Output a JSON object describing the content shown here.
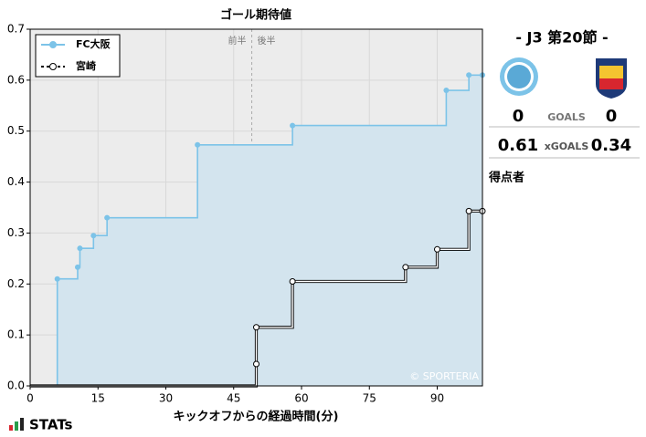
{
  "chart_data": {
    "type": "step",
    "title": "ゴール期待値",
    "x_label": "キックオフからの経過時間(分)",
    "xlim": [
      0,
      100
    ],
    "ylim": [
      0,
      0.7
    ],
    "xticks": [
      0,
      15,
      30,
      45,
      60,
      75,
      90
    ],
    "yticks": [
      {
        "value": 0,
        "label": "0.0"
      },
      0.1,
      0.2,
      0.3,
      0.4,
      0.5,
      0.6,
      0.7
    ],
    "grid": true,
    "legend": "upper left",
    "half_time": 49,
    "half_labels": [
      "前半",
      "後半"
    ],
    "watermark": "© SPORTERIA",
    "series": [
      {
        "name": "FC大阪",
        "color": "#7cc3e8",
        "x": [
          0,
          6,
          10.5,
          11,
          14,
          17,
          37,
          58,
          92,
          97,
          100
        ],
        "values": [
          0,
          0.21,
          0.233,
          0.27,
          0.295,
          0.33,
          0.473,
          0.511,
          0.58,
          0.61,
          0.61
        ]
      },
      {
        "name": "宮崎",
        "color": "#000000",
        "x": [
          0,
          50,
          50,
          58,
          83,
          90,
          97,
          100
        ],
        "values": [
          0,
          0.043,
          0.115,
          0.205,
          0.233,
          0.268,
          0.343,
          0.343
        ]
      }
    ]
  },
  "match_panel": {
    "round": "- J3 第20節 -",
    "home_goals": "0",
    "goals_label": "GOALS",
    "away_goals": "0",
    "home_xg": "0.61",
    "xg_label": "xGOALS",
    "away_xg": "0.34",
    "scorers_label": "得点者"
  },
  "footer": {
    "brand": "STATs"
  }
}
